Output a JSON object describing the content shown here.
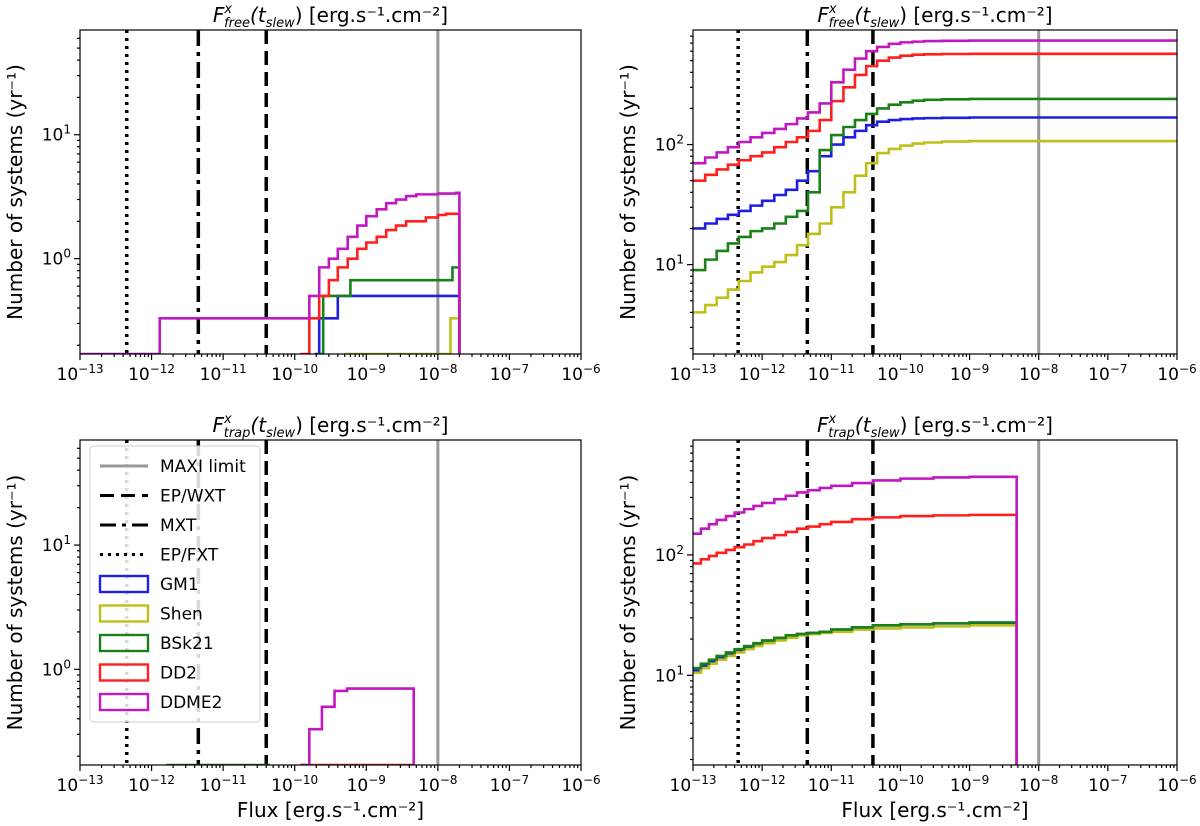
{
  "figure": {
    "ylabel": "Number of systems (yr⁻¹)",
    "xlabel": "Flux [erg.s⁻¹.cm⁻²]"
  },
  "colors": {
    "GM1": "#1f1fe0",
    "Shen": "#bfbf19",
    "BSk21": "#1a801a",
    "DD2": "#ff1f1f",
    "DDME2": "#bf19bf",
    "MAXI": "#999999"
  },
  "vlines": [
    {
      "name": "MAXI limit",
      "x": 1e-08,
      "style": "solid"
    },
    {
      "name": "EP/WXT",
      "x": 4e-11,
      "style": "dashed"
    },
    {
      "name": "MXT",
      "x": 4.5e-12,
      "style": "dashdot"
    },
    {
      "name": "EP/FXT",
      "x": 4.5e-13,
      "style": "dotted"
    }
  ],
  "legend": [
    "MAXI limit",
    "EP/WXT",
    "MXT",
    "EP/FXT",
    "GM1",
    "Shen",
    "BSk21",
    "DD2",
    "DDME2"
  ],
  "chart_data": [
    {
      "id": "top-left",
      "type": "line",
      "title": "F^x_free(t_slew) [erg.s⁻¹.cm⁻²]",
      "title_main": "F",
      "title_sup": "x",
      "title_sub": "free",
      "title_rest_a": "(t",
      "title_rest_sub": "slew",
      "title_rest_b": ") [erg.s⁻¹.cm⁻²]",
      "xscale": "log",
      "yscale": "log",
      "xlim": [
        1e-13,
        1e-06
      ],
      "ylim": [
        0.17,
        70
      ],
      "yticks": [
        1,
        10
      ],
      "show_xlabel": false,
      "show_ylabel": true,
      "legend": false,
      "series": [
        {
          "name": "GM1",
          "x": [
            1.9e-10,
            2.2e-10,
            4e-10,
            6e-09,
            2e-08
          ],
          "y": [
            0.17,
            0.33,
            0.5,
            0.5,
            0.17
          ]
        },
        {
          "name": "Shen",
          "x": [
            5e-10,
            1e-09,
            1.5e-08,
            2e-08
          ],
          "y": [
            0.17,
            0.17,
            0.33,
            0.17
          ]
        },
        {
          "name": "BSk21",
          "x": [
            2.1e-10,
            2.5e-10,
            6e-10,
            1e-08,
            1.6e-08,
            2e-08
          ],
          "y": [
            0.17,
            0.5,
            0.67,
            0.67,
            0.85,
            0.17
          ]
        },
        {
          "name": "DD2",
          "x": [
            1.2e-10,
            1.6e-10,
            2.2e-10,
            3e-10,
            4e-10,
            5.5e-10,
            7.5e-10,
            1e-09,
            1.4e-09,
            1.9e-09,
            2.6e-09,
            3.6e-09,
            5e-09,
            6.8e-09,
            1e-08,
            1.3e-08,
            1.8e-08,
            2e-08
          ],
          "y": [
            0.17,
            0.33,
            0.5,
            0.67,
            0.85,
            1.0,
            1.2,
            1.35,
            1.5,
            1.7,
            1.85,
            2.0,
            2.0,
            2.15,
            2.25,
            2.3,
            2.3,
            0.17
          ]
        },
        {
          "name": "DDME2",
          "x": [
            2.5e-14,
            1.4e-13,
            1.3e-12,
            1.2e-10,
            1.6e-10,
            2.2e-10,
            3e-10,
            4e-10,
            5.5e-10,
            7.5e-10,
            1e-09,
            1.4e-09,
            1.9e-09,
            2.6e-09,
            3.6e-09,
            5e-09,
            6.8e-09,
            1e-08,
            1.3e-08,
            1.8e-08,
            2e-08
          ],
          "y": [
            0.17,
            0.17,
            0.33,
            0.33,
            0.5,
            0.85,
            1.0,
            1.2,
            1.5,
            1.85,
            2.2,
            2.5,
            2.8,
            3.0,
            3.2,
            3.3,
            3.3,
            3.35,
            3.35,
            3.4,
            0.17
          ]
        }
      ]
    },
    {
      "id": "top-right",
      "type": "line",
      "title_main": "F",
      "title_sup": "x",
      "title_sub": "free",
      "title_rest_a": "(t",
      "title_rest_sub": "slew",
      "title_rest_b": ") [erg.s⁻¹.cm⁻²]",
      "xscale": "log",
      "yscale": "log",
      "xlim": [
        1e-13,
        1e-06
      ],
      "ylim": [
        1.8,
        900
      ],
      "yticks": [
        10,
        100
      ],
      "show_xlabel": false,
      "show_ylabel": true,
      "legend": false,
      "series": [
        {
          "name": "GM1",
          "x": [
            1e-13,
            1.5e-13,
            2.2e-13,
            3.2e-13,
            4.6e-13,
            6.8e-13,
            1e-12,
            1.5e-12,
            2.2e-12,
            3.2e-12,
            4.6e-12,
            6.8e-12,
            1e-11,
            1.5e-11,
            2.2e-11,
            3.2e-11,
            4.6e-11,
            6.8e-11,
            1e-10,
            1.5e-10,
            2.2e-10,
            4e-10,
            1e-09,
            1e-06
          ],
          "y": [
            20,
            22,
            24,
            26,
            28,
            31,
            34,
            38,
            42,
            50,
            60,
            80,
            100,
            115,
            130,
            145,
            155,
            160,
            163,
            165,
            166,
            167,
            168,
            168
          ]
        },
        {
          "name": "Shen",
          "x": [
            1e-13,
            1.5e-13,
            2.2e-13,
            3.2e-13,
            4.6e-13,
            6.8e-13,
            1e-12,
            1.5e-12,
            2.2e-12,
            3.2e-12,
            4.6e-12,
            6.8e-12,
            1e-11,
            1.5e-11,
            2.2e-11,
            3.2e-11,
            4.6e-11,
            6.8e-11,
            1e-10,
            1.5e-10,
            2.2e-10,
            4e-10,
            1e-09,
            1e-06
          ],
          "y": [
            4,
            4.6,
            5.3,
            6.2,
            7.3,
            8.6,
            9.6,
            10.5,
            12,
            14.5,
            18,
            22,
            30,
            40,
            55,
            70,
            85,
            92,
            98,
            102,
            104,
            106,
            107,
            107
          ]
        },
        {
          "name": "BSk21",
          "x": [
            1e-13,
            1.5e-13,
            2.2e-13,
            3.2e-13,
            4.6e-13,
            6.8e-13,
            1e-12,
            1.5e-12,
            2.2e-12,
            3.2e-12,
            4.6e-12,
            6.8e-12,
            1e-11,
            1.5e-11,
            2.2e-11,
            3.2e-11,
            4.6e-11,
            6.8e-11,
            1e-10,
            1.5e-10,
            2.2e-10,
            4e-10,
            1e-09,
            1e-06
          ],
          "y": [
            9,
            11,
            13,
            15,
            17,
            19,
            20,
            22,
            25,
            28,
            40,
            90,
            120,
            140,
            160,
            180,
            200,
            215,
            225,
            232,
            236,
            238,
            240,
            240
          ]
        },
        {
          "name": "DD2",
          "x": [
            1e-13,
            1.5e-13,
            2.2e-13,
            3.2e-13,
            4.6e-13,
            6.8e-13,
            1e-12,
            1.5e-12,
            2.2e-12,
            3.2e-12,
            4.6e-12,
            6.8e-12,
            1e-11,
            1.5e-11,
            2.2e-11,
            3.2e-11,
            4.6e-11,
            6.8e-11,
            1e-10,
            1.5e-10,
            2.2e-10,
            4e-10,
            1e-09,
            1e-06
          ],
          "y": [
            50,
            56,
            62,
            68,
            74,
            80,
            86,
            95,
            105,
            115,
            130,
            160,
            230,
            300,
            380,
            450,
            500,
            530,
            550,
            560,
            565,
            568,
            570,
            570
          ]
        },
        {
          "name": "DDME2",
          "x": [
            1e-13,
            1.5e-13,
            2.2e-13,
            3.2e-13,
            4.6e-13,
            6.8e-13,
            1e-12,
            1.5e-12,
            2.2e-12,
            3.2e-12,
            4.6e-12,
            6.8e-12,
            1e-11,
            1.5e-11,
            2.2e-11,
            3.2e-11,
            4.6e-11,
            6.8e-11,
            1e-10,
            1.5e-10,
            2.2e-10,
            4e-10,
            1e-09,
            1e-06
          ],
          "y": [
            70,
            78,
            86,
            95,
            105,
            115,
            125,
            135,
            148,
            165,
            185,
            220,
            330,
            420,
            520,
            600,
            650,
            690,
            710,
            720,
            728,
            732,
            735,
            735
          ]
        }
      ]
    },
    {
      "id": "bottom-left",
      "type": "line",
      "title_main": "F",
      "title_sup": "x",
      "title_sub": "trap",
      "title_rest_a": "(t",
      "title_rest_sub": "slew",
      "title_rest_b": ") [erg.s⁻¹.cm⁻²]",
      "xscale": "log",
      "yscale": "log",
      "xlim": [
        1e-13,
        1e-06
      ],
      "ylim": [
        0.17,
        70
      ],
      "yticks": [
        1,
        10
      ],
      "show_xlabel": true,
      "show_ylabel": true,
      "legend": true,
      "series": [
        {
          "name": "BSk21",
          "x": [
            1.6e-12,
            4.5e-11
          ],
          "y": [
            0.17,
            0.17
          ]
        },
        {
          "name": "DD2",
          "x": [
            1.2e-10,
            4.8e-09,
            4.8e-09
          ],
          "y": [
            0.17,
            0.17,
            0.17
          ]
        },
        {
          "name": "DDME2",
          "x": [
            1.2e-10,
            1.6e-10,
            2.4e-10,
            3.6e-10,
            5.4e-10,
            1e-09,
            4.6e-09,
            4.6e-09
          ],
          "y": [
            0.17,
            0.33,
            0.5,
            0.67,
            0.7,
            0.7,
            0.7,
            0.17
          ]
        }
      ]
    },
    {
      "id": "bottom-right",
      "type": "line",
      "title_main": "F",
      "title_sup": "x",
      "title_sub": "trap",
      "title_rest_a": "(t",
      "title_rest_sub": "slew",
      "title_rest_b": ") [erg.s⁻¹.cm⁻²]",
      "xscale": "log",
      "yscale": "log",
      "xlim": [
        1e-13,
        1e-06
      ],
      "ylim": [
        1.8,
        900
      ],
      "yticks": [
        10,
        100
      ],
      "show_xlabel": true,
      "show_ylabel": true,
      "legend": false,
      "series": [
        {
          "name": "GM1",
          "x": [
            1e-13,
            1.3e-13,
            1.7e-13,
            2.2e-13,
            3e-13,
            4e-13,
            5.5e-13,
            7.5e-13,
            1e-12,
            1.5e-12,
            2.2e-12,
            3.2e-12,
            4.6e-12,
            6.8e-12,
            1e-11,
            2e-11,
            4e-11,
            1e-10,
            3e-10,
            1e-09,
            4.8e-09,
            4.8e-09
          ],
          "y": [
            11,
            12,
            13,
            14,
            15,
            16,
            17,
            18,
            19,
            20,
            21,
            22,
            22.5,
            23,
            24,
            25,
            26,
            26.5,
            27,
            27,
            27,
            1.8
          ]
        },
        {
          "name": "Shen",
          "x": [
            1e-13,
            1.3e-13,
            1.7e-13,
            2.2e-13,
            3e-13,
            4e-13,
            5.5e-13,
            7.5e-13,
            1e-12,
            1.5e-12,
            2.2e-12,
            3.2e-12,
            4.6e-12,
            6.8e-12,
            1e-11,
            2e-11,
            4e-11,
            1e-10,
            3e-10,
            1e-09,
            4.8e-09,
            4.8e-09
          ],
          "y": [
            10.5,
            11.5,
            12.5,
            13.5,
            14.5,
            15.5,
            16.5,
            17.5,
            18.5,
            19.5,
            20.5,
            21.5,
            22,
            22.5,
            23,
            24,
            24.5,
            25,
            25.5,
            26,
            26,
            1.8
          ]
        },
        {
          "name": "BSk21",
          "x": [
            1e-13,
            1.3e-13,
            1.7e-13,
            2.2e-13,
            3e-13,
            4e-13,
            5.5e-13,
            7.5e-13,
            1e-12,
            1.5e-12,
            2.2e-12,
            3.2e-12,
            4.6e-12,
            6.8e-12,
            1e-11,
            2e-11,
            4e-11,
            1e-10,
            3e-10,
            1e-09,
            4.8e-09,
            4.8e-09
          ],
          "y": [
            11.5,
            12.5,
            13.5,
            14.5,
            15.5,
            16.5,
            17.5,
            18.5,
            19.5,
            20.5,
            21.5,
            22,
            22.5,
            23,
            24,
            25,
            26,
            26.5,
            27,
            27.5,
            27.5,
            1.8
          ]
        },
        {
          "name": "DD2",
          "x": [
            1e-13,
            1.3e-13,
            1.7e-13,
            2.2e-13,
            3e-13,
            4e-13,
            5.5e-13,
            7.5e-13,
            1e-12,
            1.5e-12,
            2.2e-12,
            3.2e-12,
            4.6e-12,
            6.8e-12,
            1e-11,
            2e-11,
            4e-11,
            1e-10,
            3e-10,
            1e-09,
            4.8e-09,
            4.8e-09
          ],
          "y": [
            85,
            92,
            98,
            104,
            110,
            116,
            122,
            130,
            138,
            146,
            155,
            165,
            172,
            180,
            188,
            198,
            205,
            210,
            213,
            215,
            215,
            1.8
          ]
        },
        {
          "name": "DDME2",
          "x": [
            1e-13,
            1.3e-13,
            1.7e-13,
            2.2e-13,
            3e-13,
            4e-13,
            5.5e-13,
            7.5e-13,
            1e-12,
            1.5e-12,
            2.2e-12,
            3.2e-12,
            4.6e-12,
            6.8e-12,
            1e-11,
            2e-11,
            4e-11,
            1e-10,
            3e-10,
            1e-09,
            4.8e-09,
            4.8e-09
          ],
          "y": [
            150,
            165,
            180,
            195,
            210,
            225,
            240,
            255,
            270,
            290,
            310,
            330,
            345,
            360,
            375,
            395,
            415,
            430,
            440,
            445,
            445,
            1.8
          ]
        }
      ]
    }
  ]
}
